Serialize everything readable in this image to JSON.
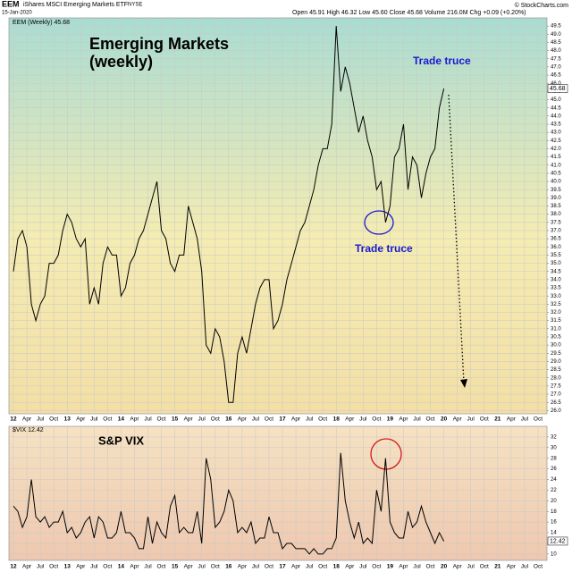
{
  "header": {
    "symbol": "EEM",
    "name": "iShares MSCI Emerging Markets ETF",
    "exchange": "NYSE",
    "date": "15-Jan-2020",
    "quote": "Open 45.91  High 46.32  Low 45.60  Close 45.68  Volume 216.0M  Chg +0.09 (+0.20%)",
    "copyright": "© StockCharts.com"
  },
  "chart_data": [
    {
      "type": "line",
      "title": "Emerging Markets",
      "subtitle": "(weekly)",
      "annotations": [
        "Trade truce",
        "Trade truce"
      ],
      "x": [
        "2012-01",
        "2012-02",
        "2012-03",
        "2012-04",
        "2012-05",
        "2012-06",
        "2012-07",
        "2012-08",
        "2012-09",
        "2012-10",
        "2012-11",
        "2012-12",
        "2013-01",
        "2013-02",
        "2013-03",
        "2013-04",
        "2013-05",
        "2013-06",
        "2013-07",
        "2013-08",
        "2013-09",
        "2013-10",
        "2013-11",
        "2013-12",
        "2014-01",
        "2014-02",
        "2014-03",
        "2014-04",
        "2014-05",
        "2014-06",
        "2014-07",
        "2014-08",
        "2014-09",
        "2014-10",
        "2014-11",
        "2014-12",
        "2015-01",
        "2015-02",
        "2015-03",
        "2015-04",
        "2015-05",
        "2015-06",
        "2015-07",
        "2015-08",
        "2015-09",
        "2015-10",
        "2015-11",
        "2015-12",
        "2016-01",
        "2016-02",
        "2016-03",
        "2016-04",
        "2016-05",
        "2016-06",
        "2016-07",
        "2016-08",
        "2016-09",
        "2016-10",
        "2016-11",
        "2016-12",
        "2017-01",
        "2017-02",
        "2017-03",
        "2017-04",
        "2017-05",
        "2017-06",
        "2017-07",
        "2017-08",
        "2017-09",
        "2017-10",
        "2017-11",
        "2017-12",
        "2018-01",
        "2018-02",
        "2018-03",
        "2018-04",
        "2018-05",
        "2018-06",
        "2018-07",
        "2018-08",
        "2018-09",
        "2018-10",
        "2018-11",
        "2018-12",
        "2019-01",
        "2019-02",
        "2019-03",
        "2019-04",
        "2019-05",
        "2019-06",
        "2019-07",
        "2019-08",
        "2019-09",
        "2019-10",
        "2019-11",
        "2019-12",
        "2020-01"
      ],
      "series": [
        {
          "name": "EEM (Weekly) 45.68",
          "color": "#000000",
          "values": [
            34.5,
            36.5,
            37.0,
            36.0,
            32.5,
            31.5,
            32.5,
            33.0,
            35.0,
            35.0,
            35.5,
            37.0,
            38.0,
            37.5,
            36.5,
            36.0,
            36.5,
            32.5,
            33.5,
            32.5,
            35.0,
            36.0,
            35.5,
            35.5,
            33.0,
            33.5,
            35.0,
            35.5,
            36.5,
            37.0,
            38.0,
            39.0,
            40.0,
            37.0,
            36.5,
            35.0,
            34.5,
            35.5,
            35.5,
            38.5,
            37.5,
            36.5,
            34.5,
            30.0,
            29.5,
            31.0,
            30.5,
            29.0,
            26.5,
            26.5,
            29.5,
            30.5,
            29.5,
            31.0,
            32.5,
            33.5,
            34.0,
            34.0,
            31.0,
            31.5,
            32.5,
            34.0,
            35.0,
            36.0,
            37.0,
            37.5,
            38.5,
            39.5,
            41.0,
            42.0,
            42.0,
            43.5,
            49.5,
            45.5,
            47.0,
            46.0,
            44.5,
            43.0,
            44.0,
            42.5,
            41.5,
            39.5,
            40.0,
            37.5,
            38.5,
            41.5,
            42.0,
            43.5,
            39.5,
            41.5,
            41.0,
            39.0,
            40.5,
            41.5,
            42.0,
            44.5,
            45.68
          ]
        }
      ],
      "xlim": [
        "2011-12",
        "2021-12"
      ],
      "xticks": [
        {
          "value": "2012-01",
          "label": "12"
        },
        {
          "value": "2012-04",
          "label": "Apr"
        },
        {
          "value": "2012-07",
          "label": "Jul"
        },
        {
          "value": "2012-10",
          "label": "Oct"
        },
        {
          "value": "2013-01",
          "label": "13"
        },
        {
          "value": "2013-04",
          "label": "Apr"
        },
        {
          "value": "2013-07",
          "label": "Jul"
        },
        {
          "value": "2013-10",
          "label": "Oct"
        },
        {
          "value": "2014-01",
          "label": "14"
        },
        {
          "value": "2014-04",
          "label": "Apr"
        },
        {
          "value": "2014-07",
          "label": "Jul"
        },
        {
          "value": "2014-10",
          "label": "Oct"
        },
        {
          "value": "2015-01",
          "label": "15"
        },
        {
          "value": "2015-04",
          "label": "Apr"
        },
        {
          "value": "2015-07",
          "label": "Jul"
        },
        {
          "value": "2015-10",
          "label": "Oct"
        },
        {
          "value": "2016-01",
          "label": "16"
        },
        {
          "value": "2016-04",
          "label": "Apr"
        },
        {
          "value": "2016-07",
          "label": "Jul"
        },
        {
          "value": "2016-10",
          "label": "Oct"
        },
        {
          "value": "2017-01",
          "label": "17"
        },
        {
          "value": "2017-04",
          "label": "Apr"
        },
        {
          "value": "2017-07",
          "label": "Jul"
        },
        {
          "value": "2017-10",
          "label": "Oct"
        },
        {
          "value": "2018-01",
          "label": "18"
        },
        {
          "value": "2018-04",
          "label": "Apr"
        },
        {
          "value": "2018-07",
          "label": "Jul"
        },
        {
          "value": "2018-10",
          "label": "Oct"
        },
        {
          "value": "2019-01",
          "label": "19"
        },
        {
          "value": "2019-04",
          "label": "Apr"
        },
        {
          "value": "2019-07",
          "label": "Jul"
        },
        {
          "value": "2019-10",
          "label": "Oct"
        },
        {
          "value": "2020-01",
          "label": "20"
        },
        {
          "value": "2020-04",
          "label": "Apr"
        },
        {
          "value": "2020-07",
          "label": "Jul"
        },
        {
          "value": "2020-10",
          "label": "Oct"
        },
        {
          "value": "2021-01",
          "label": "21"
        },
        {
          "value": "2021-04",
          "label": "Apr"
        },
        {
          "value": "2021-07",
          "label": "Jul"
        },
        {
          "value": "2021-10",
          "label": "Oct"
        }
      ],
      "ylim": [
        25.8,
        50.0
      ],
      "yticks": [
        {
          "value": 26,
          "label": "26.0"
        },
        26.5,
        {
          "value": 27,
          "label": "27.0"
        },
        27.5,
        {
          "value": 28,
          "label": "28.0"
        },
        28.5,
        {
          "value": 29,
          "label": "29.0"
        },
        29.5,
        {
          "value": 30,
          "label": "30.0"
        },
        30.5,
        {
          "value": 31,
          "label": "31.0"
        },
        31.5,
        {
          "value": 32,
          "label": "32.0"
        },
        32.5,
        {
          "value": 33,
          "label": "33.0"
        },
        33.5,
        {
          "value": 34,
          "label": "34.0"
        },
        34.5,
        {
          "value": 35,
          "label": "35.0"
        },
        35.5,
        {
          "value": 36,
          "label": "36.0"
        },
        36.5,
        {
          "value": 37,
          "label": "37.0"
        },
        37.5,
        {
          "value": 38,
          "label": "38.0"
        },
        38.5,
        {
          "value": 39,
          "label": "39.0"
        },
        39.5,
        {
          "value": 40,
          "label": "40.0"
        },
        40.5,
        {
          "value": 41,
          "label": "41.0"
        },
        41.5,
        {
          "value": 42,
          "label": "42.0"
        },
        42.5,
        {
          "value": 43,
          "label": "43.0"
        },
        43.5,
        {
          "value": 44,
          "label": "44.0"
        },
        44.5,
        {
          "value": 45,
          "label": "45.0"
        },
        45.5,
        {
          "value": 46,
          "label": "46.0"
        },
        46.5,
        {
          "value": 47,
          "label": "47.0"
        },
        47.5,
        {
          "value": 48,
          "label": "48.0"
        },
        48.5,
        {
          "value": 49,
          "label": "49.0"
        },
        49.5
      ],
      "grid": true
    },
    {
      "type": "line",
      "title": "S&P VIX",
      "x": [
        "2012-01",
        "2012-02",
        "2012-03",
        "2012-04",
        "2012-05",
        "2012-06",
        "2012-07",
        "2012-08",
        "2012-09",
        "2012-10",
        "2012-11",
        "2012-12",
        "2013-01",
        "2013-02",
        "2013-03",
        "2013-04",
        "2013-05",
        "2013-06",
        "2013-07",
        "2013-08",
        "2013-09",
        "2013-10",
        "2013-11",
        "2013-12",
        "2014-01",
        "2014-02",
        "2014-03",
        "2014-04",
        "2014-05",
        "2014-06",
        "2014-07",
        "2014-08",
        "2014-09",
        "2014-10",
        "2014-11",
        "2014-12",
        "2015-01",
        "2015-02",
        "2015-03",
        "2015-04",
        "2015-05",
        "2015-06",
        "2015-07",
        "2015-08",
        "2015-09",
        "2015-10",
        "2015-11",
        "2015-12",
        "2016-01",
        "2016-02",
        "2016-03",
        "2016-04",
        "2016-05",
        "2016-06",
        "2016-07",
        "2016-08",
        "2016-09",
        "2016-10",
        "2016-11",
        "2016-12",
        "2017-01",
        "2017-02",
        "2017-03",
        "2017-04",
        "2017-05",
        "2017-06",
        "2017-07",
        "2017-08",
        "2017-09",
        "2017-10",
        "2017-11",
        "2017-12",
        "2018-01",
        "2018-02",
        "2018-03",
        "2018-04",
        "2018-05",
        "2018-06",
        "2018-07",
        "2018-08",
        "2018-09",
        "2018-10",
        "2018-11",
        "2018-12",
        "2019-01",
        "2019-02",
        "2019-03",
        "2019-04",
        "2019-05",
        "2019-06",
        "2019-07",
        "2019-08",
        "2019-09",
        "2019-10",
        "2019-11",
        "2019-12",
        "2020-01"
      ],
      "series": [
        {
          "name": "$VIX 12.42",
          "color": "#000000",
          "values": [
            19,
            18,
            15,
            17,
            24,
            17,
            16,
            17,
            15,
            16,
            16,
            18,
            14,
            15,
            13,
            14,
            16,
            17,
            13,
            17,
            16,
            13,
            13,
            14,
            18,
            14,
            14,
            13,
            11,
            11,
            17,
            12,
            16,
            14,
            13,
            19,
            21,
            14,
            15,
            14,
            14,
            18,
            12,
            28,
            24,
            15,
            16,
            18,
            22,
            20,
            14,
            15,
            14,
            16,
            12,
            13,
            13,
            17,
            14,
            14,
            11,
            12,
            12,
            11,
            11,
            11,
            10,
            11,
            10,
            10,
            11,
            11,
            13,
            29,
            20,
            16,
            13,
            16,
            12,
            13,
            12,
            22,
            18,
            28,
            16,
            14,
            13,
            13,
            18,
            15,
            16,
            19,
            16,
            14,
            12,
            14,
            12.42
          ]
        }
      ],
      "xlim": [
        "2011-12",
        "2021-12"
      ],
      "xticks": [
        {
          "value": "2012-01",
          "label": "12"
        },
        {
          "value": "2012-04",
          "label": "Apr"
        },
        {
          "value": "2012-07",
          "label": "Jul"
        },
        {
          "value": "2012-10",
          "label": "Oct"
        },
        {
          "value": "2013-01",
          "label": "13"
        },
        {
          "value": "2013-04",
          "label": "Apr"
        },
        {
          "value": "2013-07",
          "label": "Jul"
        },
        {
          "value": "2013-10",
          "label": "Oct"
        },
        {
          "value": "2014-01",
          "label": "14"
        },
        {
          "value": "2014-04",
          "label": "Apr"
        },
        {
          "value": "2014-07",
          "label": "Jul"
        },
        {
          "value": "2014-10",
          "label": "Oct"
        },
        {
          "value": "2015-01",
          "label": "15"
        },
        {
          "value": "2015-04",
          "label": "Apr"
        },
        {
          "value": "2015-07",
          "label": "Jul"
        },
        {
          "value": "2015-10",
          "label": "Oct"
        },
        {
          "value": "2016-01",
          "label": "16"
        },
        {
          "value": "2016-04",
          "label": "Apr"
        },
        {
          "value": "2016-07",
          "label": "Jul"
        },
        {
          "value": "2016-10",
          "label": "Oct"
        },
        {
          "value": "2017-01",
          "label": "17"
        },
        {
          "value": "2017-04",
          "label": "Apr"
        },
        {
          "value": "2017-07",
          "label": "Jul"
        },
        {
          "value": "2017-10",
          "label": "Oct"
        },
        {
          "value": "2018-01",
          "label": "18"
        },
        {
          "value": "2018-04",
          "label": "Apr"
        },
        {
          "value": "2018-07",
          "label": "Jul"
        },
        {
          "value": "2018-10",
          "label": "Oct"
        },
        {
          "value": "2019-01",
          "label": "19"
        },
        {
          "value": "2019-04",
          "label": "Apr"
        },
        {
          "value": "2019-07",
          "label": "Jul"
        },
        {
          "value": "2019-10",
          "label": "Oct"
        },
        {
          "value": "2020-01",
          "label": "20"
        },
        {
          "value": "2020-04",
          "label": "Apr"
        },
        {
          "value": "2020-07",
          "label": "Jul"
        },
        {
          "value": "2020-10",
          "label": "Oct"
        },
        {
          "value": "2021-01",
          "label": "21"
        },
        {
          "value": "2021-04",
          "label": "Apr"
        },
        {
          "value": "2021-07",
          "label": "Jul"
        },
        {
          "value": "2021-10",
          "label": "Oct"
        }
      ],
      "ylim": [
        8.8,
        34
      ],
      "yticks": [
        10,
        12,
        14,
        16,
        18,
        20,
        22,
        24,
        26,
        28,
        30,
        32
      ],
      "grid": true
    }
  ]
}
